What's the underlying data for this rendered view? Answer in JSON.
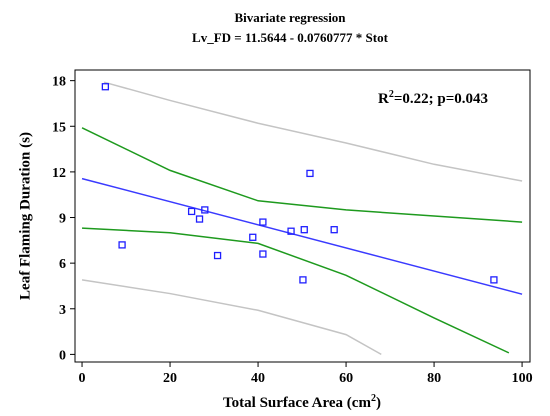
{
  "chart_data": {
    "type": "scatter",
    "title": "Bivariate regression",
    "subtitle": "Lv_FD = 11.5644 - 0.0760777 * Stot",
    "annotation": {
      "base": "R",
      "sup": "2",
      "rest": "=0.22; p=0.043"
    },
    "x_label": {
      "base": "Total Surface Area (cm",
      "sup": "2",
      "end": ")"
    },
    "y_label": "Leaf Flaming Duration (s)",
    "xlim": [
      -1.6,
      101.8
    ],
    "ylim": [
      -0.5,
      18.7
    ],
    "xticks": [
      0,
      20,
      40,
      60,
      80,
      100
    ],
    "yticks": [
      0,
      3,
      6,
      9,
      12,
      15,
      18
    ],
    "points": {
      "color": "#1f1fff",
      "x": [
        5.3,
        9.1,
        24.9,
        26.7,
        27.9,
        30.8,
        38.8,
        41.1,
        41.1,
        47.5,
        50.5,
        50.2,
        51.8,
        57.3,
        93.6
      ],
      "y": [
        17.6,
        7.2,
        9.4,
        8.9,
        9.5,
        6.5,
        7.7,
        8.7,
        6.6,
        8.1,
        8.2,
        4.9,
        11.9,
        8.2,
        4.9
      ]
    },
    "fit": {
      "color": "#3a3aff",
      "x": [
        0,
        100
      ],
      "y": [
        11.56,
        3.96
      ]
    },
    "confidence_upper": {
      "color": "#1e9a1e",
      "x": [
        0,
        20,
        40,
        60,
        80,
        100
      ],
      "y": [
        14.9,
        12.1,
        10.1,
        9.5,
        9.1,
        8.7
      ]
    },
    "confidence_lower": {
      "color": "#1e9a1e",
      "x": [
        0,
        20,
        40,
        60,
        80,
        97
      ],
      "y": [
        8.3,
        8.0,
        7.3,
        5.2,
        2.4,
        0.1
      ]
    },
    "prediction_upper": {
      "color": "#c4c4c4",
      "x": [
        5,
        20,
        40,
        60,
        80,
        100
      ],
      "y": [
        17.9,
        16.7,
        15.2,
        13.9,
        12.5,
        11.4
      ]
    },
    "prediction_lower": {
      "color": "#c4c4c4",
      "x": [
        0,
        20,
        40,
        60,
        68
      ],
      "y": [
        4.9,
        4.0,
        2.9,
        1.3,
        0
      ]
    }
  }
}
